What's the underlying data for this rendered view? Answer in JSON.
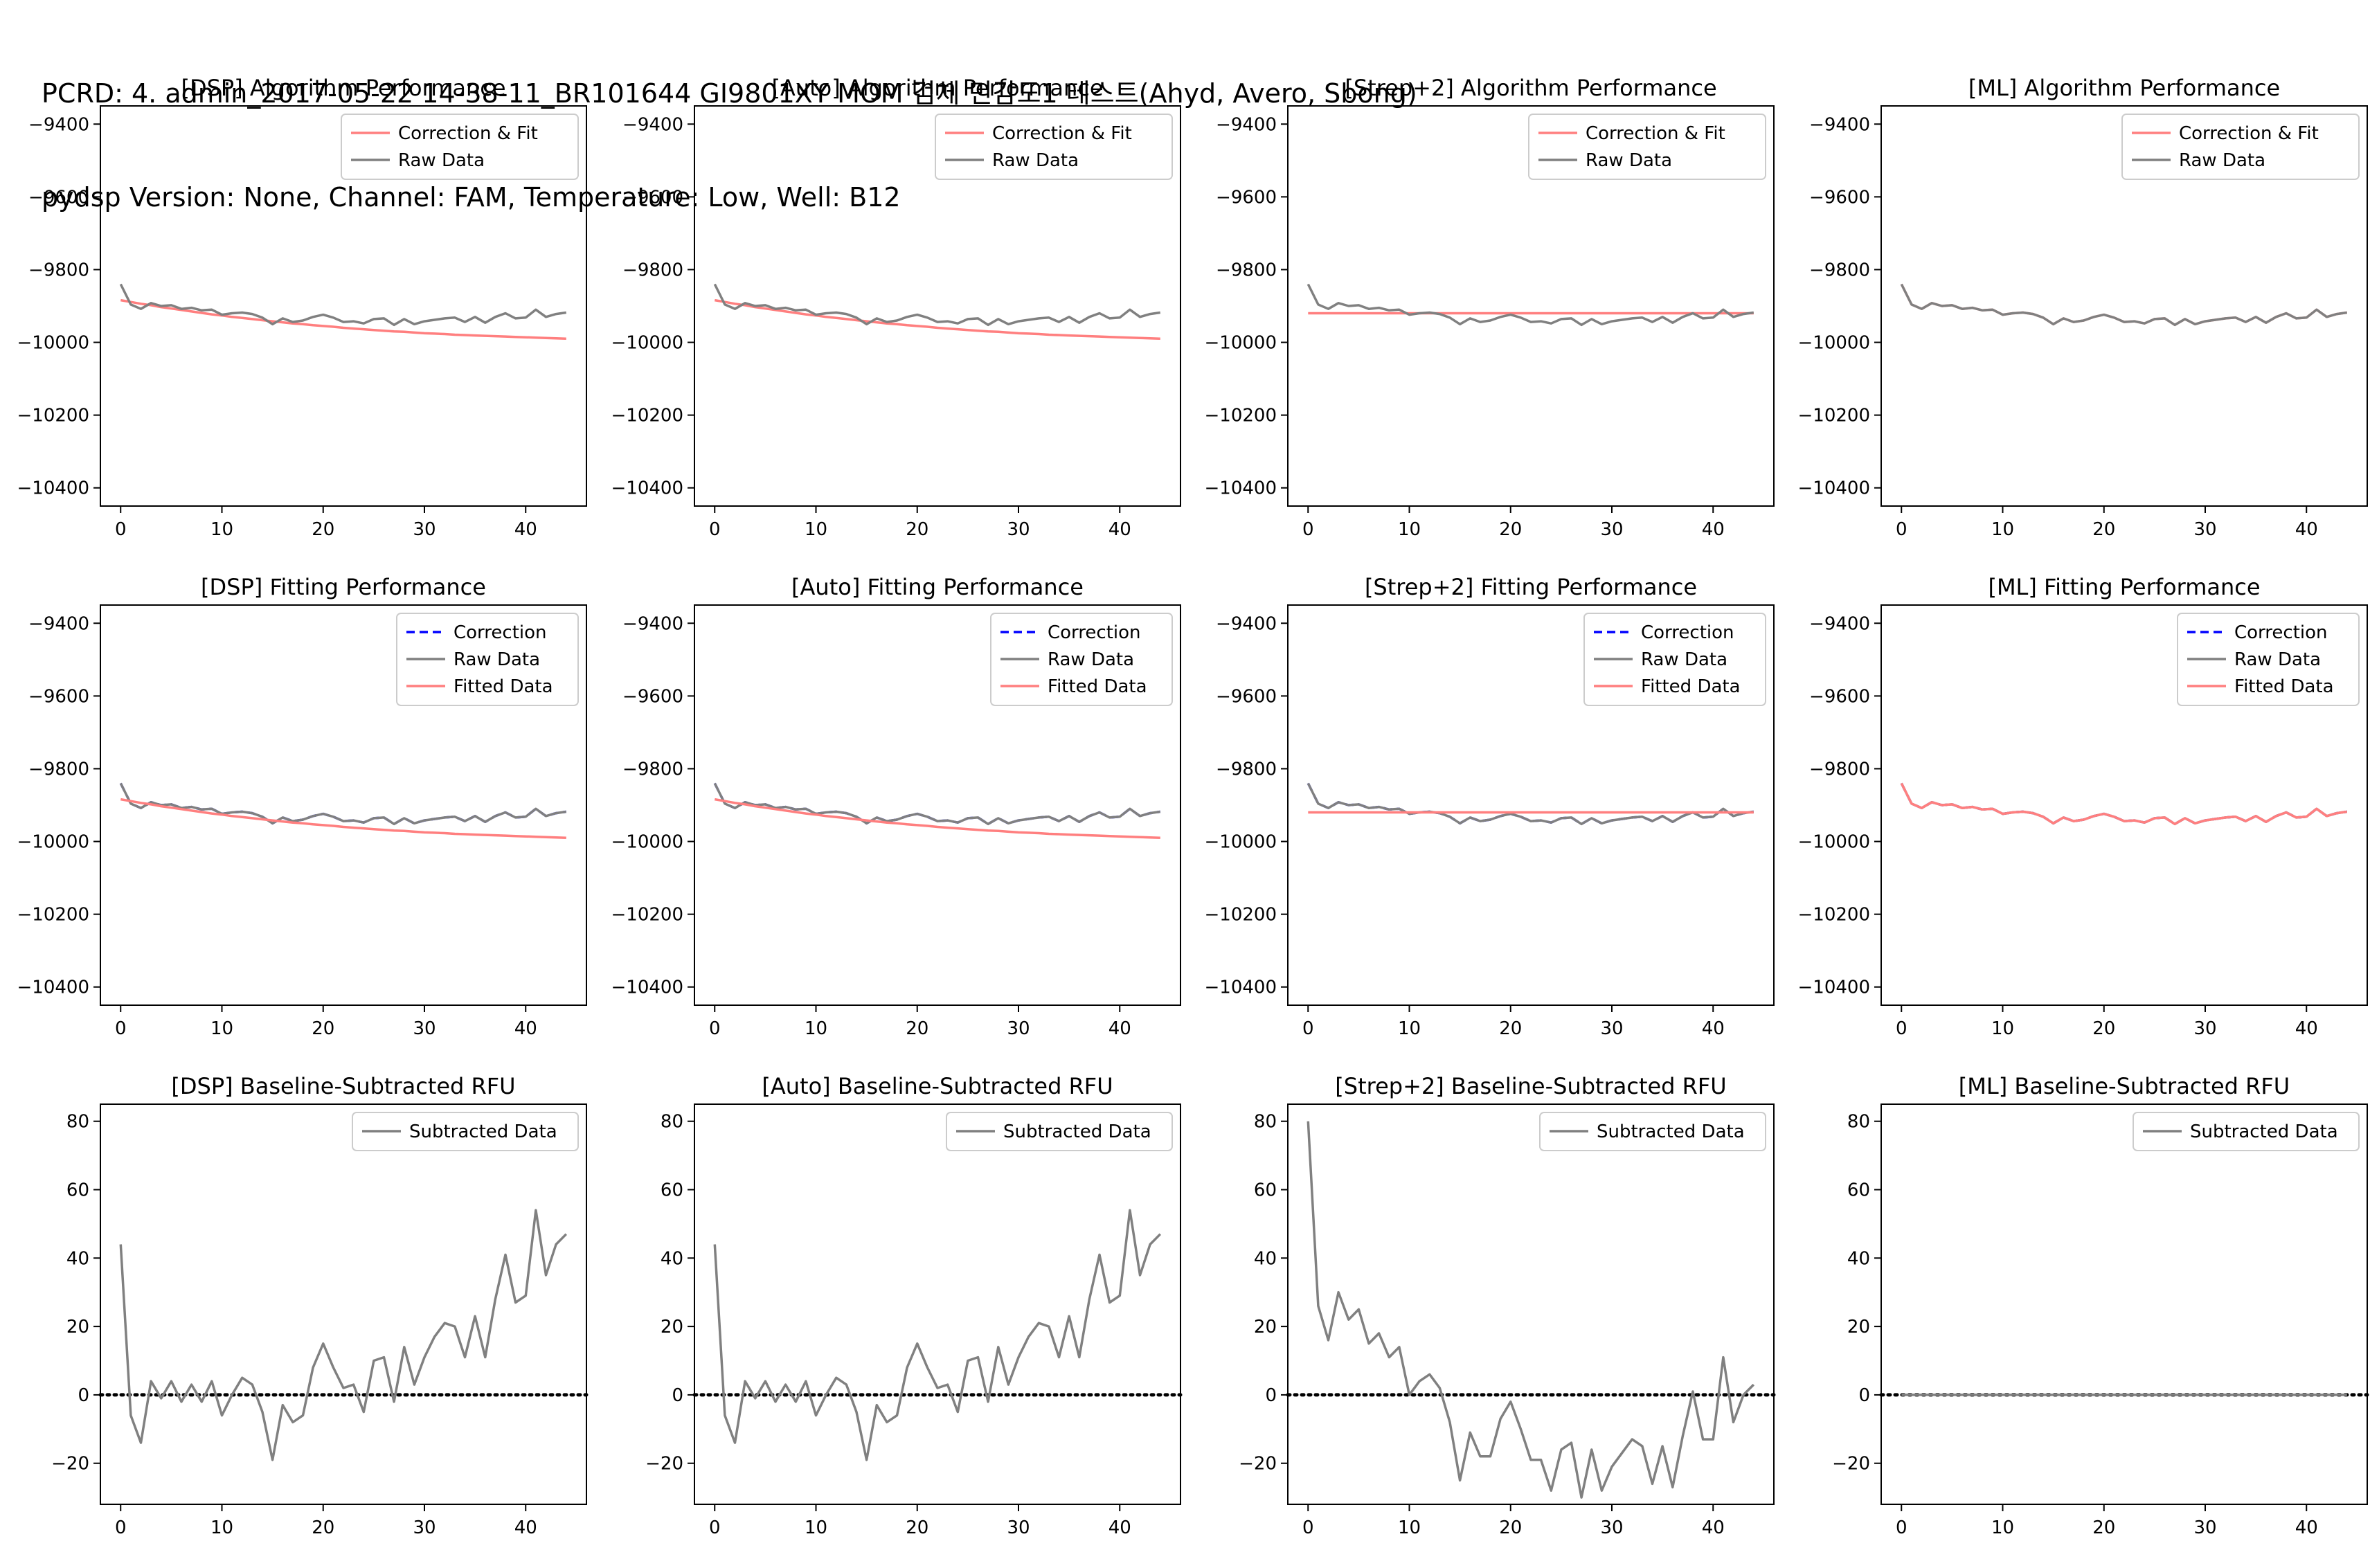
{
  "title_lines": [
    "PCRD: 4. admin_2017-05-22 14-38-11_BR101644 GI9801XY MOM 검체 민감도1 테스트(Ahyd, Avero, Sbong)",
    "pydsp Version: None, Channel: FAM, Temperature: Low, Well: B12"
  ],
  "colors": {
    "raw": "#808080",
    "fit": "#ff7f7f",
    "correction": "#0000ff",
    "zero": "#000000"
  },
  "chart_data": [
    {
      "type": "line",
      "title": "[DSP] Algorithm Performance",
      "xlim": [
        -2,
        46
      ],
      "ylim": [
        -10450,
        -9350
      ],
      "xticks": [
        0,
        10,
        20,
        30,
        40
      ],
      "yticks": [
        -9400,
        -9600,
        -9800,
        -10000,
        -10200,
        -10400
      ],
      "legend": "top-right",
      "series": [
        {
          "name": "Correction & Fit",
          "style": "fit",
          "model": "dsp_fit"
        },
        {
          "name": "Raw Data",
          "style": "raw",
          "model": "raw"
        }
      ]
    },
    {
      "type": "line",
      "title": "[Auto] Algorithm Performance",
      "xlim": [
        -2,
        46
      ],
      "ylim": [
        -10450,
        -9350
      ],
      "xticks": [
        0,
        10,
        20,
        30,
        40
      ],
      "yticks": [
        -9400,
        -9600,
        -9800,
        -10000,
        -10200,
        -10400
      ],
      "legend": "top-right",
      "series": [
        {
          "name": "Correction & Fit",
          "style": "fit",
          "model": "dsp_fit"
        },
        {
          "name": "Raw Data",
          "style": "raw",
          "model": "raw"
        }
      ]
    },
    {
      "type": "line",
      "title": "[Strep+2] Algorithm Performance",
      "xlim": [
        -2,
        46
      ],
      "ylim": [
        -10450,
        -9350
      ],
      "xticks": [
        0,
        10,
        20,
        30,
        40
      ],
      "yticks": [
        -9400,
        -9600,
        -9800,
        -10000,
        -10200,
        -10400
      ],
      "legend": "top-right",
      "series": [
        {
          "name": "Correction & Fit",
          "style": "fit",
          "model": "strep_fit"
        },
        {
          "name": "Raw Data",
          "style": "raw",
          "model": "raw"
        }
      ]
    },
    {
      "type": "line",
      "title": "[ML] Algorithm Performance",
      "xlim": [
        -2,
        46
      ],
      "ylim": [
        -10450,
        -9350
      ],
      "xticks": [
        0,
        10,
        20,
        30,
        40
      ],
      "yticks": [
        -9400,
        -9600,
        -9800,
        -10000,
        -10200,
        -10400
      ],
      "legend": "top-right",
      "series": [
        {
          "name": "Correction & Fit",
          "style": "fit",
          "model": "raw"
        },
        {
          "name": "Raw Data",
          "style": "raw",
          "model": "raw"
        }
      ]
    },
    {
      "type": "line",
      "title": "[DSP] Fitting Performance",
      "xlim": [
        -2,
        46
      ],
      "ylim": [
        -10450,
        -9350
      ],
      "xticks": [
        0,
        10,
        20,
        30,
        40
      ],
      "yticks": [
        -9400,
        -9600,
        -9800,
        -10000,
        -10200,
        -10400
      ],
      "legend": "top-right",
      "series": [
        {
          "name": "Correction",
          "style": "correction",
          "model": "raw"
        },
        {
          "name": "Raw Data",
          "style": "raw",
          "model": "raw"
        },
        {
          "name": "Fitted Data",
          "style": "fit",
          "model": "dsp_fit"
        }
      ]
    },
    {
      "type": "line",
      "title": "[Auto] Fitting Performance",
      "xlim": [
        -2,
        46
      ],
      "ylim": [
        -10450,
        -9350
      ],
      "xticks": [
        0,
        10,
        20,
        30,
        40
      ],
      "yticks": [
        -9400,
        -9600,
        -9800,
        -10000,
        -10200,
        -10400
      ],
      "legend": "top-right",
      "series": [
        {
          "name": "Correction",
          "style": "correction",
          "model": "raw"
        },
        {
          "name": "Raw Data",
          "style": "raw",
          "model": "raw"
        },
        {
          "name": "Fitted Data",
          "style": "fit",
          "model": "dsp_fit"
        }
      ]
    },
    {
      "type": "line",
      "title": "[Strep+2] Fitting Performance",
      "xlim": [
        -2,
        46
      ],
      "ylim": [
        -10450,
        -9350
      ],
      "xticks": [
        0,
        10,
        20,
        30,
        40
      ],
      "yticks": [
        -9400,
        -9600,
        -9800,
        -10000,
        -10200,
        -10400
      ],
      "legend": "top-right",
      "series": [
        {
          "name": "Correction",
          "style": "correction",
          "model": "raw"
        },
        {
          "name": "Raw Data",
          "style": "raw",
          "model": "raw"
        },
        {
          "name": "Fitted Data",
          "style": "fit",
          "model": "strep_fit"
        }
      ]
    },
    {
      "type": "line",
      "title": "[ML] Fitting Performance",
      "xlim": [
        -2,
        46
      ],
      "ylim": [
        -10450,
        -9350
      ],
      "xticks": [
        0,
        10,
        20,
        30,
        40
      ],
      "yticks": [
        -9400,
        -9600,
        -9800,
        -10000,
        -10200,
        -10400
      ],
      "legend": "top-right",
      "series": [
        {
          "name": "Correction",
          "style": "correction",
          "model": "raw"
        },
        {
          "name": "Raw Data",
          "style": "raw",
          "model": "raw"
        },
        {
          "name": "Fitted Data",
          "style": "fit",
          "model": "raw"
        }
      ]
    },
    {
      "type": "line",
      "title": "[DSP] Baseline-Subtracted RFU",
      "xlim": [
        -2,
        46
      ],
      "ylim": [
        -32,
        85
      ],
      "xticks": [
        0,
        10,
        20,
        30,
        40
      ],
      "yticks": [
        80,
        60,
        40,
        20,
        0,
        -20
      ],
      "legend": "top-right",
      "zero_line": true,
      "series": [
        {
          "name": "Subtracted Data",
          "style": "raw",
          "model": "dsp_sub"
        }
      ]
    },
    {
      "type": "line",
      "title": "[Auto] Baseline-Subtracted RFU",
      "xlim": [
        -2,
        46
      ],
      "ylim": [
        -32,
        85
      ],
      "xticks": [
        0,
        10,
        20,
        30,
        40
      ],
      "yticks": [
        80,
        60,
        40,
        20,
        0,
        -20
      ],
      "legend": "top-right",
      "zero_line": true,
      "series": [
        {
          "name": "Subtracted Data",
          "style": "raw",
          "model": "dsp_sub"
        }
      ]
    },
    {
      "type": "line",
      "title": "[Strep+2] Baseline-Subtracted RFU",
      "xlim": [
        -2,
        46
      ],
      "ylim": [
        -32,
        85
      ],
      "xticks": [
        0,
        10,
        20,
        30,
        40
      ],
      "yticks": [
        80,
        60,
        40,
        20,
        0,
        -20
      ],
      "legend": "top-right",
      "zero_line": true,
      "series": [
        {
          "name": "Subtracted Data",
          "style": "raw",
          "model": "strep_sub"
        }
      ]
    },
    {
      "type": "line",
      "title": "[ML] Baseline-Subtracted RFU",
      "xlim": [
        -2,
        46
      ],
      "ylim": [
        -32,
        85
      ],
      "xticks": [
        0,
        10,
        20,
        30,
        40
      ],
      "yticks": [
        80,
        60,
        40,
        20,
        0,
        -20
      ],
      "legend": "top-right",
      "zero_line": true,
      "series": [
        {
          "name": "Subtracted Data",
          "style": "raw",
          "model": "ml_sub"
        }
      ]
    }
  ],
  "series_values": {
    "x": [
      0,
      1,
      2,
      3,
      4,
      5,
      6,
      7,
      8,
      9,
      10,
      11,
      12,
      13,
      14,
      15,
      16,
      17,
      18,
      19,
      20,
      21,
      22,
      23,
      24,
      25,
      26,
      27,
      28,
      29,
      30,
      31,
      32,
      33,
      34,
      35,
      36,
      37,
      38,
      39,
      40,
      41,
      42,
      43,
      44
    ],
    "raw": [
      -9840,
      -9896,
      -9908,
      -9892,
      -9900,
      -9898,
      -9908,
      -9905,
      -9912,
      -9910,
      -9924,
      -9920,
      -9918,
      -9922,
      -9932,
      -9950,
      -9934,
      -9944,
      -9940,
      -9930,
      -9924,
      -9932,
      -9944,
      -9942,
      -9948,
      -9936,
      -9934,
      -9952,
      -9936,
      -9950,
      -9942,
      -9938,
      -9934,
      -9932,
      -9944,
      -9930,
      -9946,
      -9930,
      -9920,
      -9934,
      -9932,
      -9910,
      -9930,
      -9922,
      -9918
    ],
    "dsp_fit": [
      -9884,
      -9889,
      -9894,
      -9898,
      -9903,
      -9907,
      -9911,
      -9915,
      -9919,
      -9923,
      -9926,
      -9930,
      -9933,
      -9936,
      -9939,
      -9942,
      -9945,
      -9948,
      -9950,
      -9953,
      -9955,
      -9957,
      -9960,
      -9962,
      -9964,
      -9966,
      -9968,
      -9970,
      -9971,
      -9973,
      -9975,
      -9976,
      -9977,
      -9979,
      -9980,
      -9981,
      -9982,
      -9983,
      -9984,
      -9985,
      -9986,
      -9987,
      -9988,
      -9989,
      -9990
    ],
    "strep_fit": [
      -9920,
      -9920,
      -9920,
      -9920,
      -9920,
      -9920,
      -9920,
      -9920,
      -9920,
      -9920,
      -9920,
      -9920,
      -9920,
      -9920,
      -9920,
      -9920,
      -9920,
      -9920,
      -9920,
      -9920,
      -9920,
      -9920,
      -9920,
      -9920,
      -9920,
      -9920,
      -9920,
      -9920,
      -9920,
      -9920,
      -9920,
      -9920,
      -9920,
      -9920,
      -9920,
      -9920,
      -9920,
      -9920,
      -9920,
      -9920,
      -9920,
      -9920,
      -9920,
      -9920,
      -9920
    ],
    "dsp_sub": [
      44,
      -6,
      -14,
      4,
      -1,
      4,
      -2,
      3,
      -2,
      4,
      -6,
      0,
      5,
      3,
      -5,
      -19,
      -3,
      -8,
      -6,
      8,
      15,
      8,
      2,
      3,
      -5,
      10,
      11,
      -2,
      14,
      3,
      11,
      17,
      21,
      20,
      11,
      23,
      11,
      28,
      41,
      27,
      29,
      54,
      35,
      44,
      47
    ],
    "strep_sub": [
      80,
      26,
      16,
      30,
      22,
      25,
      15,
      18,
      11,
      14,
      0,
      4,
      6,
      2,
      -8,
      -25,
      -11,
      -18,
      -18,
      -7,
      -2,
      -10,
      -19,
      -19,
      -28,
      -16,
      -14,
      -30,
      -16,
      -28,
      -21,
      -17,
      -13,
      -15,
      -26,
      -15,
      -27,
      -12,
      1,
      -13,
      -13,
      11,
      -8,
      0,
      3
    ],
    "ml_sub": [
      0,
      0,
      0,
      0,
      0,
      0,
      0,
      0,
      0,
      0,
      0,
      0,
      0,
      0,
      0,
      0,
      0,
      0,
      0,
      0,
      0,
      0,
      0,
      0,
      0,
      0,
      0,
      0,
      0,
      0,
      0,
      0,
      0,
      0,
      0,
      0,
      0,
      0,
      0,
      0,
      0,
      0,
      0,
      0,
      0
    ]
  }
}
